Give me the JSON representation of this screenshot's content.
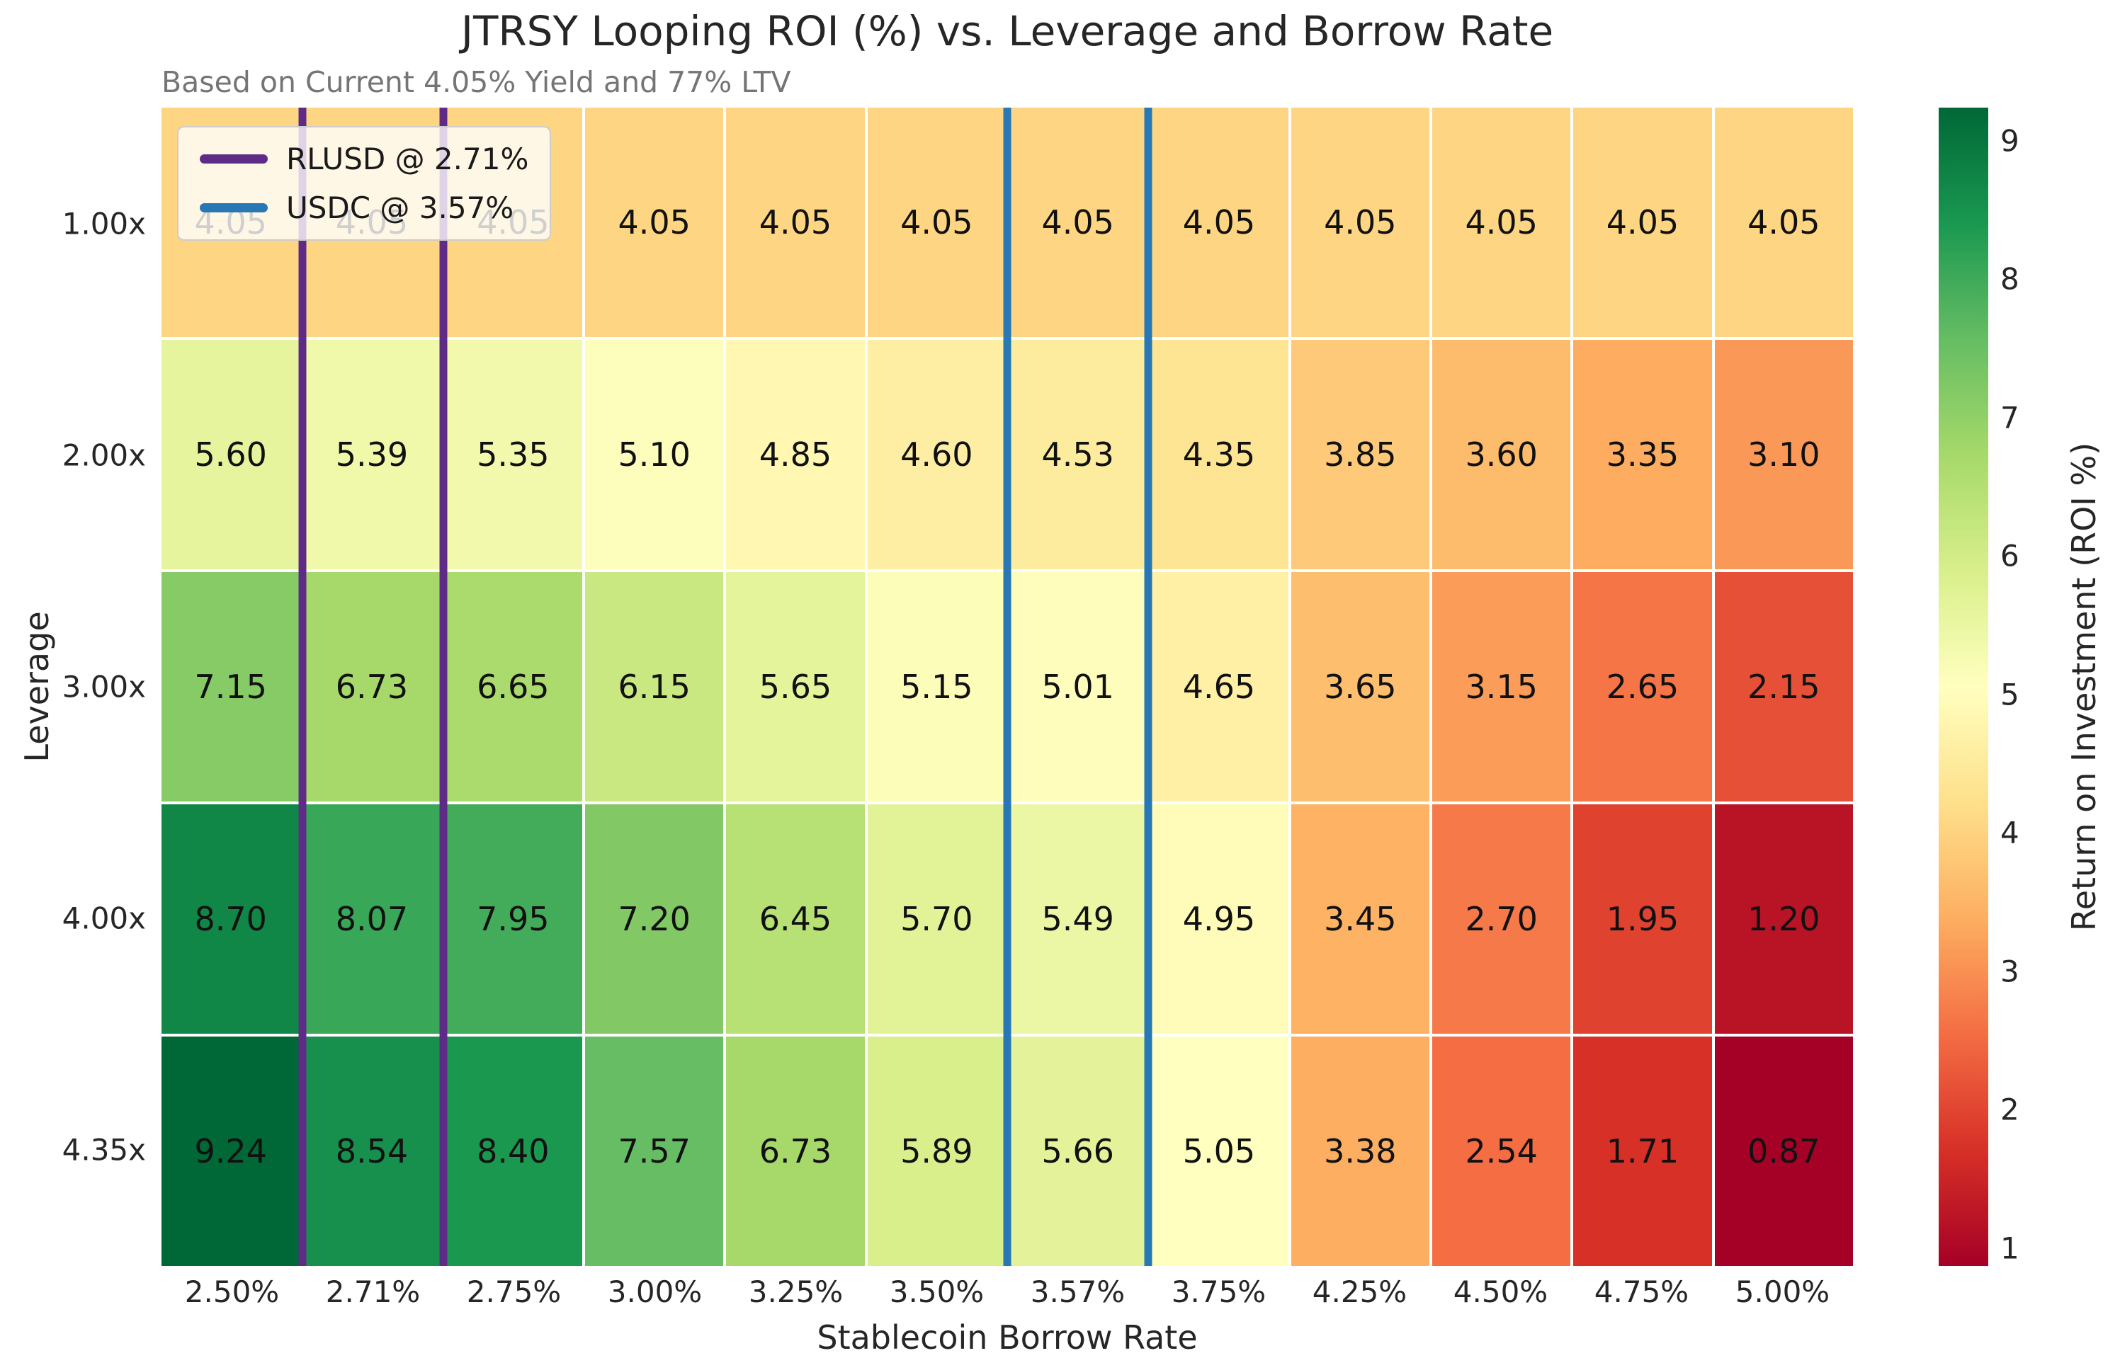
{
  "figure": {
    "background": "#ffffff",
    "text_color": "#262626",
    "subtitle_color": "#757575"
  },
  "chart_data": {
    "type": "heatmap",
    "title": "JTRSY Looping ROI (%) vs. Leverage and Borrow Rate",
    "subtitle": "Based on Current 4.05% Yield and 77% LTV",
    "xlabel": "Stablecoin Borrow Rate",
    "ylabel": "Leverage",
    "x_categories": [
      "2.50%",
      "2.71%",
      "2.75%",
      "3.00%",
      "3.25%",
      "3.50%",
      "3.57%",
      "3.75%",
      "4.25%",
      "4.50%",
      "4.75%",
      "5.00%"
    ],
    "y_categories": [
      "1.00x",
      "2.00x",
      "3.00x",
      "4.00x",
      "4.35x"
    ],
    "values": [
      [
        4.05,
        4.05,
        4.05,
        4.05,
        4.05,
        4.05,
        4.05,
        4.05,
        4.05,
        4.05,
        4.05,
        4.05
      ],
      [
        5.6,
        5.39,
        5.35,
        5.1,
        4.85,
        4.6,
        4.53,
        4.35,
        3.85,
        3.6,
        3.35,
        3.1
      ],
      [
        7.15,
        6.73,
        6.65,
        6.15,
        5.65,
        5.15,
        5.01,
        4.65,
        3.65,
        3.15,
        2.65,
        2.15
      ],
      [
        8.7,
        8.07,
        7.95,
        7.2,
        6.45,
        5.7,
        5.49,
        4.95,
        3.45,
        2.7,
        1.95,
        1.2
      ],
      [
        9.24,
        8.54,
        8.4,
        7.57,
        6.73,
        5.89,
        5.66,
        5.05,
        3.38,
        2.54,
        1.71,
        0.87
      ]
    ],
    "value_format_decimals": 2,
    "vmin": 0.87,
    "vmax": 9.24,
    "cell_text_color": "#111111",
    "grid_line_color": "#ffffff",
    "colormap_name": "RdYlGn",
    "colormap_stops": [
      "#a50026",
      "#d73027",
      "#f46d43",
      "#fdae61",
      "#fee08b",
      "#ffffbf",
      "#d9ef8b",
      "#a6d96a",
      "#66bd63",
      "#1a9850",
      "#006837"
    ],
    "colorbar": {
      "label": "Return on Investment (ROI %)",
      "ticks": [
        1,
        2,
        3,
        4,
        5,
        6,
        7,
        8,
        9
      ]
    },
    "legend": {
      "entries": [
        {
          "label": "RLUSD @ 2.71%",
          "color": "#5e2c87"
        },
        {
          "label": "USDC @ 3.57%",
          "color": "#2878b5"
        }
      ]
    },
    "reference_columns": [
      {
        "label": "RLUSD @ 2.71%",
        "color": "#5e2c87",
        "column_index": 1
      },
      {
        "label": "USDC @ 3.57%",
        "color": "#2878b5",
        "column_index": 6
      }
    ]
  }
}
